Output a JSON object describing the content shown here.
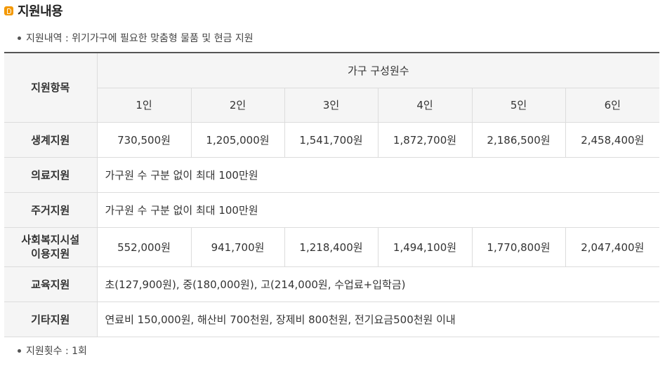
{
  "section_title": "지원내용",
  "bullet1": "지원내역 : 위기가구에 필요한 맞춤형 물품 및 현금 지원",
  "bullet2": "지원횟수 : 1회",
  "table": {
    "item_header": "지원항목",
    "group_header": "가구 구성원수",
    "columns": [
      "1인",
      "2인",
      "3인",
      "4인",
      "5인",
      "6인"
    ],
    "rows": {
      "living": {
        "label": "생계지원",
        "values": [
          "730,500원",
          "1,205,000원",
          "1,541,700원",
          "1,872,700원",
          "2,186,500원",
          "2,458,400원"
        ]
      },
      "medical": {
        "label": "의료지원",
        "text": "가구원 수 구분 없이 최대 100만원"
      },
      "housing": {
        "label": "주거지원",
        "text": "가구원 수 구분 없이 최대 100만원"
      },
      "welfare": {
        "label_line1": "사회복지시설",
        "label_line2": "이용지원",
        "values": [
          "552,000원",
          "941,700원",
          "1,218,400원",
          "1,494,100원",
          "1,770,800원",
          "2,047,400원"
        ]
      },
      "education": {
        "label": "교육지원",
        "text": "초(127,900원), 중(180,000원), 고(214,000원, 수업료+입학금)"
      },
      "other": {
        "label": "기타지원",
        "text": "연료비 150,000원, 해산비 700천원, 장제비 800천원, 전기요금500천원 이내"
      }
    }
  }
}
